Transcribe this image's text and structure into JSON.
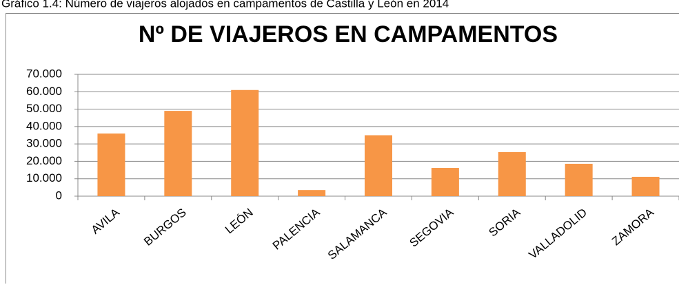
{
  "caption": "Gráfico 1.4: Número de viajeros alojados en campamentos de Castilla y León en 2014",
  "chart_data": {
    "type": "bar",
    "title": "Nº DE VIAJEROS EN CAMPAMENTOS",
    "categories": [
      "AVILA",
      "BURGOS",
      "LEÓN",
      "PALENCIA",
      "SALAMANCA",
      "SEGOVIA",
      "SORIA",
      "VALLADOLID",
      "ZAMORA"
    ],
    "values": [
      36000,
      49000,
      61000,
      3500,
      35000,
      16200,
      25300,
      18600,
      11100
    ],
    "color": "#f79646",
    "ylim": [
      0,
      70000
    ],
    "yticks": [
      0,
      {
        "value": 10000,
        "label": "10.000"
      },
      {
        "value": 20000,
        "label": "20.000"
      },
      {
        "value": 30000,
        "label": "30.000"
      },
      {
        "value": 40000,
        "label": "40.000"
      },
      {
        "value": 50000,
        "label": "50.000"
      },
      {
        "value": 60000,
        "label": "60.000"
      },
      {
        "value": 70000,
        "label": "70.000"
      }
    ],
    "grid": true
  }
}
